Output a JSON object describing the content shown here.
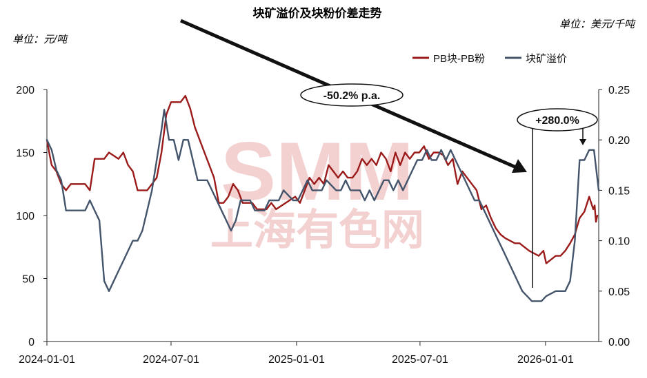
{
  "chart_data": {
    "type": "line",
    "title": "块矿溢价及块粉价差走势",
    "left_unit": "单位：元/吨",
    "right_unit": "单位：美元/千吨",
    "watermark": {
      "logo": "SMM",
      "text": "上海有色网"
    },
    "x_ticks": [
      "2024-01-01",
      "2024-07-01",
      "2025-01-01",
      "2025-07-01",
      "2026-01-01"
    ],
    "x_range": [
      "2024-01-01",
      "2026-03-20"
    ],
    "y_left": {
      "min": 0,
      "max": 200,
      "ticks": [
        "0",
        "50",
        "100",
        "150",
        "200"
      ]
    },
    "y_right": {
      "min": 0,
      "max": 0.25,
      "ticks": [
        "0.00",
        "0.05",
        "0.10",
        "0.15",
        "0.20",
        "0.25"
      ]
    },
    "legend_position": "top-right",
    "series": [
      {
        "name": "PB块-PB粉",
        "axis": "left",
        "color": "#9b1b1b",
        "points": [
          [
            "2024-01-01",
            160
          ],
          [
            "2024-01-05",
            148
          ],
          [
            "2024-01-08",
            140
          ],
          [
            "2024-01-15",
            135
          ],
          [
            "2024-01-22",
            125
          ],
          [
            "2024-01-29",
            120
          ],
          [
            "2024-02-05",
            125
          ],
          [
            "2024-02-26",
            125
          ],
          [
            "2024-03-04",
            120
          ],
          [
            "2024-03-11",
            145
          ],
          [
            "2024-03-25",
            145
          ],
          [
            "2024-04-01",
            150
          ],
          [
            "2024-04-15",
            145
          ],
          [
            "2024-04-22",
            150
          ],
          [
            "2024-04-29",
            140
          ],
          [
            "2024-05-06",
            135
          ],
          [
            "2024-05-13",
            120
          ],
          [
            "2024-05-27",
            120
          ],
          [
            "2024-06-03",
            125
          ],
          [
            "2024-06-10",
            130
          ],
          [
            "2024-06-17",
            150
          ],
          [
            "2024-06-24",
            180
          ],
          [
            "2024-07-01",
            190
          ],
          [
            "2024-07-15",
            190
          ],
          [
            "2024-07-22",
            195
          ],
          [
            "2024-07-29",
            185
          ],
          [
            "2024-08-05",
            170
          ],
          [
            "2024-08-12",
            160
          ],
          [
            "2024-08-19",
            150
          ],
          [
            "2024-08-26",
            140
          ],
          [
            "2024-09-02",
            130
          ],
          [
            "2024-09-09",
            110
          ],
          [
            "2024-09-16",
            110
          ],
          [
            "2024-09-23",
            115
          ],
          [
            "2024-09-30",
            125
          ],
          [
            "2024-10-07",
            120
          ],
          [
            "2024-10-14",
            110
          ],
          [
            "2024-10-28",
            110
          ],
          [
            "2024-11-04",
            105
          ],
          [
            "2024-11-18",
            105
          ],
          [
            "2024-11-25",
            110
          ],
          [
            "2024-12-02",
            105
          ],
          [
            "2024-12-16",
            110
          ],
          [
            "2024-12-30",
            115
          ],
          [
            "2025-01-06",
            110
          ],
          [
            "2025-01-13",
            120
          ],
          [
            "2025-01-20",
            130
          ],
          [
            "2025-01-27",
            125
          ],
          [
            "2025-02-03",
            130
          ],
          [
            "2025-02-10",
            125
          ],
          [
            "2025-02-17",
            140
          ],
          [
            "2025-02-24",
            135
          ],
          [
            "2025-03-03",
            130
          ],
          [
            "2025-03-10",
            135
          ],
          [
            "2025-03-17",
            130
          ],
          [
            "2025-03-24",
            130
          ],
          [
            "2025-03-31",
            135
          ],
          [
            "2025-04-07",
            145
          ],
          [
            "2025-04-14",
            140
          ],
          [
            "2025-04-21",
            145
          ],
          [
            "2025-04-28",
            140
          ],
          [
            "2025-05-05",
            150
          ],
          [
            "2025-05-12",
            145
          ],
          [
            "2025-05-19",
            135
          ],
          [
            "2025-05-26",
            150
          ],
          [
            "2025-06-02",
            140
          ],
          [
            "2025-06-09",
            150
          ],
          [
            "2025-06-16",
            145
          ],
          [
            "2025-06-23",
            150
          ],
          [
            "2025-06-30",
            150
          ],
          [
            "2025-07-07",
            155
          ],
          [
            "2025-07-14",
            145
          ],
          [
            "2025-07-21",
            150
          ],
          [
            "2025-07-28",
            150
          ],
          [
            "2025-08-04",
            148
          ],
          [
            "2025-08-11",
            140
          ],
          [
            "2025-08-18",
            145
          ],
          [
            "2025-08-25",
            125
          ],
          [
            "2025-09-01",
            135
          ],
          [
            "2025-09-08",
            130
          ],
          [
            "2025-09-15",
            125
          ],
          [
            "2025-09-22",
            120
          ],
          [
            "2025-09-29",
            105
          ],
          [
            "2025-10-06",
            108
          ],
          [
            "2025-10-13",
            98
          ],
          [
            "2025-10-20",
            90
          ],
          [
            "2025-10-27",
            85
          ],
          [
            "2025-11-03",
            82
          ],
          [
            "2025-11-10",
            80
          ],
          [
            "2025-11-17",
            78
          ],
          [
            "2025-11-24",
            78
          ],
          [
            "2025-12-01",
            75
          ],
          [
            "2025-12-08",
            72
          ],
          [
            "2025-12-15",
            70
          ],
          [
            "2025-12-22",
            68
          ],
          [
            "2025-12-29",
            72
          ],
          [
            "2026-01-02",
            62
          ],
          [
            "2026-01-09",
            65
          ],
          [
            "2026-01-16",
            68
          ],
          [
            "2026-01-23",
            68
          ],
          [
            "2026-01-30",
            72
          ],
          [
            "2026-02-06",
            78
          ],
          [
            "2026-02-13",
            85
          ],
          [
            "2026-02-20",
            98
          ],
          [
            "2026-02-27",
            103
          ],
          [
            "2026-03-06",
            115
          ],
          [
            "2026-03-09",
            110
          ],
          [
            "2026-03-12",
            105
          ],
          [
            "2026-03-14",
            108
          ],
          [
            "2026-03-16",
            95
          ],
          [
            "2026-03-18",
            100
          ]
        ]
      },
      {
        "name": "块矿溢价",
        "axis": "right",
        "color": "#44546a",
        "points": [
          [
            "2024-01-01",
            0.2
          ],
          [
            "2024-01-08",
            0.19
          ],
          [
            "2024-01-15",
            0.17
          ],
          [
            "2024-01-22",
            0.16
          ],
          [
            "2024-01-29",
            0.13
          ],
          [
            "2024-02-05",
            0.13
          ],
          [
            "2024-02-26",
            0.13
          ],
          [
            "2024-03-04",
            0.14
          ],
          [
            "2024-03-11",
            0.13
          ],
          [
            "2024-03-18",
            0.12
          ],
          [
            "2024-03-25",
            0.06
          ],
          [
            "2024-04-01",
            0.05
          ],
          [
            "2024-04-08",
            0.06
          ],
          [
            "2024-04-15",
            0.07
          ],
          [
            "2024-04-22",
            0.08
          ],
          [
            "2024-04-29",
            0.09
          ],
          [
            "2024-05-06",
            0.1
          ],
          [
            "2024-05-13",
            0.1
          ],
          [
            "2024-05-20",
            0.11
          ],
          [
            "2024-05-27",
            0.13
          ],
          [
            "2024-06-03",
            0.15
          ],
          [
            "2024-06-10",
            0.18
          ],
          [
            "2024-06-17",
            0.21
          ],
          [
            "2024-06-21",
            0.23
          ],
          [
            "2024-06-28",
            0.2
          ],
          [
            "2024-07-05",
            0.2
          ],
          [
            "2024-07-12",
            0.18
          ],
          [
            "2024-07-19",
            0.2
          ],
          [
            "2024-07-26",
            0.2
          ],
          [
            "2024-08-02",
            0.18
          ],
          [
            "2024-08-09",
            0.16
          ],
          [
            "2024-08-16",
            0.16
          ],
          [
            "2024-08-23",
            0.16
          ],
          [
            "2024-08-30",
            0.15
          ],
          [
            "2024-09-06",
            0.14
          ],
          [
            "2024-09-13",
            0.13
          ],
          [
            "2024-09-20",
            0.12
          ],
          [
            "2024-09-27",
            0.11
          ],
          [
            "2024-10-04",
            0.12
          ],
          [
            "2024-10-11",
            0.14
          ],
          [
            "2024-10-25",
            0.14
          ],
          [
            "2024-11-01",
            0.13
          ],
          [
            "2024-11-15",
            0.13
          ],
          [
            "2024-11-22",
            0.14
          ],
          [
            "2024-12-06",
            0.14
          ],
          [
            "2024-12-13",
            0.15
          ],
          [
            "2024-12-27",
            0.14
          ],
          [
            "2025-01-03",
            0.14
          ],
          [
            "2025-01-10",
            0.15
          ],
          [
            "2025-01-17",
            0.16
          ],
          [
            "2025-01-24",
            0.15
          ],
          [
            "2025-02-07",
            0.15
          ],
          [
            "2025-02-14",
            0.16
          ],
          [
            "2025-02-28",
            0.15
          ],
          [
            "2025-03-07",
            0.15
          ],
          [
            "2025-03-14",
            0.16
          ],
          [
            "2025-03-21",
            0.15
          ],
          [
            "2025-04-04",
            0.15
          ],
          [
            "2025-04-11",
            0.14
          ],
          [
            "2025-04-18",
            0.15
          ],
          [
            "2025-04-25",
            0.14
          ],
          [
            "2025-05-02",
            0.15
          ],
          [
            "2025-05-09",
            0.16
          ],
          [
            "2025-05-16",
            0.16
          ],
          [
            "2025-05-23",
            0.15
          ],
          [
            "2025-05-30",
            0.16
          ],
          [
            "2025-06-06",
            0.15
          ],
          [
            "2025-06-13",
            0.16
          ],
          [
            "2025-06-20",
            0.17
          ],
          [
            "2025-06-27",
            0.18
          ],
          [
            "2025-07-04",
            0.18
          ],
          [
            "2025-07-11",
            0.19
          ],
          [
            "2025-07-18",
            0.18
          ],
          [
            "2025-07-25",
            0.18
          ],
          [
            "2025-08-01",
            0.19
          ],
          [
            "2025-08-08",
            0.18
          ],
          [
            "2025-08-15",
            0.19
          ],
          [
            "2025-08-22",
            0.18
          ],
          [
            "2025-08-29",
            0.17
          ],
          [
            "2025-09-05",
            0.16
          ],
          [
            "2025-09-12",
            0.15
          ],
          [
            "2025-09-19",
            0.14
          ],
          [
            "2025-09-26",
            0.14
          ],
          [
            "2025-10-03",
            0.13
          ],
          [
            "2025-10-10",
            0.12
          ],
          [
            "2025-10-17",
            0.11
          ],
          [
            "2025-10-24",
            0.1
          ],
          [
            "2025-10-31",
            0.09
          ],
          [
            "2025-11-07",
            0.08
          ],
          [
            "2025-11-14",
            0.07
          ],
          [
            "2025-11-21",
            0.06
          ],
          [
            "2025-11-28",
            0.05
          ],
          [
            "2025-12-05",
            0.045
          ],
          [
            "2025-12-12",
            0.04
          ],
          [
            "2025-12-26",
            0.04
          ],
          [
            "2026-01-02",
            0.045
          ],
          [
            "2026-01-16",
            0.05
          ],
          [
            "2026-01-30",
            0.05
          ],
          [
            "2026-02-06",
            0.06
          ],
          [
            "2026-02-13",
            0.1
          ],
          [
            "2026-02-20",
            0.18
          ],
          [
            "2026-02-27",
            0.18
          ],
          [
            "2026-03-06",
            0.19
          ],
          [
            "2026-03-13",
            0.19
          ],
          [
            "2026-03-20",
            0.15
          ]
        ]
      }
    ],
    "annotations": [
      {
        "text": "-50.2% p.a.",
        "style": "ellipse-label",
        "arrow": "long diagonal arrow from top-left down to early 2026-01"
      },
      {
        "text": "+280.0%",
        "style": "ellipse-label",
        "arrow": "down arrow to peak in 2026-03"
      }
    ]
  }
}
